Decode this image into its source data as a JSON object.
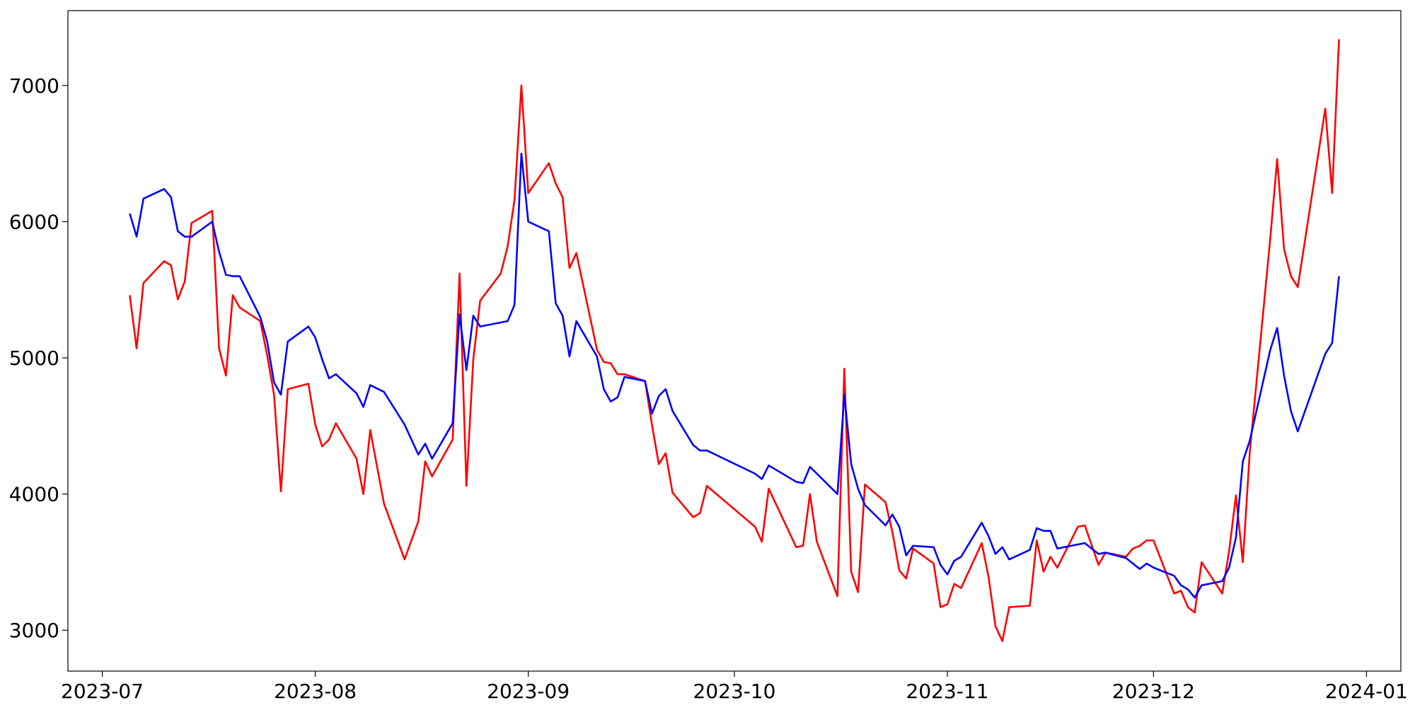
{
  "chart_data": {
    "type": "line",
    "x": [
      "2023-07-05",
      "2023-07-06",
      "2023-07-07",
      "2023-07-10",
      "2023-07-11",
      "2023-07-12",
      "2023-07-13",
      "2023-07-14",
      "2023-07-17",
      "2023-07-18",
      "2023-07-19",
      "2023-07-20",
      "2023-07-21",
      "2023-07-24",
      "2023-07-25",
      "2023-07-26",
      "2023-07-27",
      "2023-07-28",
      "2023-07-31",
      "2023-08-01",
      "2023-08-02",
      "2023-08-03",
      "2023-08-04",
      "2023-08-07",
      "2023-08-08",
      "2023-08-09",
      "2023-08-11",
      "2023-08-14",
      "2023-08-16",
      "2023-08-17",
      "2023-08-18",
      "2023-08-21",
      "2023-08-22",
      "2023-08-23",
      "2023-08-24",
      "2023-08-25",
      "2023-08-28",
      "2023-08-29",
      "2023-08-30",
      "2023-08-31",
      "2023-09-01",
      "2023-09-04",
      "2023-09-05",
      "2023-09-06",
      "2023-09-07",
      "2023-09-08",
      "2023-09-11",
      "2023-09-12",
      "2023-09-13",
      "2023-09-14",
      "2023-09-15",
      "2023-09-18",
      "2023-09-19",
      "2023-09-20",
      "2023-09-21",
      "2023-09-22",
      "2023-09-25",
      "2023-09-26",
      "2023-09-27",
      "2023-10-04",
      "2023-10-05",
      "2023-10-06",
      "2023-10-10",
      "2023-10-11",
      "2023-10-12",
      "2023-10-13",
      "2023-10-16",
      "2023-10-17",
      "2023-10-18",
      "2023-10-19",
      "2023-10-20",
      "2023-10-23",
      "2023-10-24",
      "2023-10-25",
      "2023-10-26",
      "2023-10-27",
      "2023-10-30",
      "2023-10-31",
      "2023-11-01",
      "2023-11-02",
      "2023-11-03",
      "2023-11-06",
      "2023-11-07",
      "2023-11-08",
      "2023-11-09",
      "2023-11-10",
      "2023-11-13",
      "2023-11-14",
      "2023-11-15",
      "2023-11-16",
      "2023-11-17",
      "2023-11-20",
      "2023-11-21",
      "2023-11-23",
      "2023-11-24",
      "2023-11-27",
      "2023-11-28",
      "2023-11-29",
      "2023-11-30",
      "2023-12-01",
      "2023-12-04",
      "2023-12-05",
      "2023-12-06",
      "2023-12-07",
      "2023-12-08",
      "2023-12-11",
      "2023-12-12",
      "2023-12-13",
      "2023-12-14",
      "2023-12-15",
      "2023-12-18",
      "2023-12-19",
      "2023-12-20",
      "2023-12-21",
      "2023-12-22",
      "2023-12-26",
      "2023-12-27",
      "2023-12-28"
    ],
    "series": [
      {
        "color": "#ff0000",
        "values": [
          5460,
          5070,
          5550,
          5710,
          5680,
          5430,
          5560,
          5990,
          6080,
          5070,
          4870,
          5460,
          5370,
          5270,
          5020,
          4730,
          4020,
          4770,
          4810,
          4510,
          4350,
          4400,
          4520,
          4260,
          4000,
          4470,
          3930,
          3520,
          3800,
          4240,
          4130,
          4400,
          5620,
          4060,
          4990,
          5420,
          5620,
          5820,
          6160,
          7000,
          6210,
          6430,
          6280,
          6180,
          5660,
          5770,
          5060,
          4970,
          4960,
          4880,
          4880,
          4830,
          4510,
          4220,
          4300,
          4010,
          3830,
          3860,
          4060,
          3760,
          3650,
          4040,
          3610,
          3620,
          4000,
          3650,
          3250,
          4920,
          3430,
          3280,
          4070,
          3940,
          3720,
          3440,
          3380,
          3600,
          3490,
          3170,
          3190,
          3340,
          3310,
          3640,
          3390,
          3030,
          2920,
          3170,
          3180,
          3660,
          3430,
          3540,
          3460,
          3760,
          3770,
          3480,
          3570,
          3540,
          3600,
          3620,
          3660,
          3660,
          3270,
          3290,
          3170,
          3130,
          3500,
          3270,
          3580,
          3990,
          3500,
          4300,
          5880,
          6460,
          5800,
          5600,
          5520,
          6830,
          6210,
          7340
        ]
      },
      {
        "color": "#0000ff",
        "values": [
          6060,
          5890,
          6170,
          6240,
          6180,
          5930,
          5890,
          5890,
          6000,
          5780,
          5610,
          5600,
          5600,
          5300,
          5120,
          4820,
          4730,
          5120,
          5230,
          5150,
          4990,
          4850,
          4880,
          4740,
          4640,
          4800,
          4750,
          4510,
          4290,
          4370,
          4260,
          4520,
          5320,
          4910,
          5310,
          5230,
          5260,
          5270,
          5390,
          6500,
          6000,
          5930,
          5400,
          5310,
          5010,
          5270,
          5010,
          4770,
          4680,
          4710,
          4860,
          4830,
          4590,
          4720,
          4770,
          4610,
          4360,
          4320,
          4320,
          4150,
          4110,
          4210,
          4090,
          4080,
          4200,
          4150,
          4000,
          4730,
          4220,
          4040,
          3920,
          3770,
          3850,
          3760,
          3550,
          3620,
          3610,
          3480,
          3410,
          3510,
          3540,
          3790,
          3690,
          3560,
          3610,
          3520,
          3590,
          3750,
          3730,
          3730,
          3600,
          3630,
          3640,
          3560,
          3570,
          3530,
          3490,
          3450,
          3490,
          3460,
          3400,
          3330,
          3300,
          3240,
          3330,
          3360,
          3460,
          3680,
          4240,
          4390,
          5060,
          5220,
          4870,
          4610,
          4460,
          5030,
          5110,
          5600
        ]
      }
    ],
    "xlim": [
      "2023-06-26",
      "2024-01-06"
    ],
    "xticks": [
      "2023-07",
      "2023-08",
      "2023-09",
      "2023-10",
      "2023-11",
      "2023-12",
      "2024-01"
    ],
    "ylim": [
      2700,
      7550
    ],
    "yticks": [
      3000,
      4000,
      5000,
      6000,
      7000
    ],
    "grid": false
  }
}
